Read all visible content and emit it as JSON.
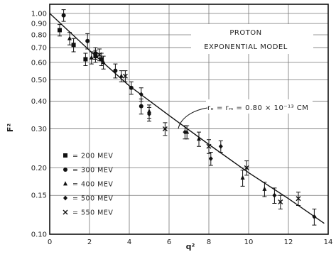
{
  "chart_data": {
    "type": "scatter",
    "title_lines": [
      "PROTON",
      "EXPONENTIAL MODEL"
    ],
    "xlabel": "q²",
    "ylabel": "F²",
    "xlim": [
      0,
      14
    ],
    "ylim": [
      0.1,
      1.1
    ],
    "y_scale": "log",
    "grid": true,
    "x_ticks": [
      0,
      2,
      4,
      6,
      8,
      10,
      12,
      14
    ],
    "x_tick_labels": [
      "0",
      "2",
      "4",
      "6",
      "8",
      "10",
      "12",
      "14"
    ],
    "y_ticks": [
      1.0,
      0.9,
      0.8,
      0.7,
      0.6,
      0.5,
      0.4,
      0.3,
      0.2,
      0.15,
      0.1
    ],
    "y_tick_labels": [
      "1.00",
      "0.90",
      "0.80",
      "0.70",
      "0.60",
      "0.50",
      "0.40",
      "0.30",
      "0.20",
      "0.15",
      "0.10"
    ],
    "annotation": "rₑ = rₘ = 0.80 × 10⁻¹³ CM",
    "annotation_target": {
      "x": 5.6,
      "y": 0.36
    },
    "legend_position": "lower-left",
    "legend": [
      {
        "marker": "square",
        "label": "= 200 MEV"
      },
      {
        "marker": "circle",
        "label": "= 300 MEV"
      },
      {
        "marker": "triangle",
        "label": "= 400 MEV"
      },
      {
        "marker": "diamond",
        "label": "= 500 MEV"
      },
      {
        "marker": "cross",
        "label": "= 550 MEV"
      }
    ],
    "fit_curve": {
      "model": "exponential",
      "x": [
        0,
        2,
        4,
        6,
        8,
        10,
        12,
        13.8
      ],
      "y": [
        1.0,
        0.68,
        0.47,
        0.345,
        0.255,
        0.19,
        0.145,
        0.112
      ]
    },
    "series": [
      {
        "name": "200 MEV",
        "marker": "square",
        "points": [
          {
            "x": 0.5,
            "y": 0.84,
            "err": 0.05
          },
          {
            "x": 1.2,
            "y": 0.72,
            "err": 0.05
          },
          {
            "x": 1.8,
            "y": 0.62,
            "err": 0.04
          },
          {
            "x": 2.3,
            "y": 0.64,
            "err": 0.04
          },
          {
            "x": 2.6,
            "y": 0.62,
            "err": 0.04
          }
        ]
      },
      {
        "name": "300 MEV",
        "marker": "circle",
        "points": [
          {
            "x": 0.7,
            "y": 0.98,
            "err": 0.06
          },
          {
            "x": 1.9,
            "y": 0.75,
            "err": 0.06
          },
          {
            "x": 2.3,
            "y": 0.66,
            "err": 0.04
          },
          {
            "x": 3.3,
            "y": 0.55,
            "err": 0.04
          },
          {
            "x": 4.1,
            "y": 0.46,
            "err": 0.03
          },
          {
            "x": 4.6,
            "y": 0.38,
            "err": 0.03
          }
        ]
      },
      {
        "name": "400 MEV",
        "marker": "triangle",
        "points": [
          {
            "x": 1.0,
            "y": 0.77,
            "err": 0.05
          },
          {
            "x": 2.1,
            "y": 0.63,
            "err": 0.04
          },
          {
            "x": 2.7,
            "y": 0.6,
            "err": 0.04
          },
          {
            "x": 3.6,
            "y": 0.52,
            "err": 0.03
          },
          {
            "x": 5.0,
            "y": 0.36,
            "err": 0.025
          },
          {
            "x": 6.9,
            "y": 0.29,
            "err": 0.02
          },
          {
            "x": 7.5,
            "y": 0.27,
            "err": 0.02
          },
          {
            "x": 9.7,
            "y": 0.18,
            "err": 0.015
          },
          {
            "x": 10.8,
            "y": 0.16,
            "err": 0.012
          }
        ]
      },
      {
        "name": "500 MEV",
        "marker": "diamond",
        "points": [
          {
            "x": 4.6,
            "y": 0.43,
            "err": 0.03
          },
          {
            "x": 5.0,
            "y": 0.35,
            "err": 0.025
          },
          {
            "x": 6.8,
            "y": 0.29,
            "err": 0.02
          },
          {
            "x": 8.1,
            "y": 0.22,
            "err": 0.015
          },
          {
            "x": 8.6,
            "y": 0.25,
            "err": 0.015
          },
          {
            "x": 11.3,
            "y": 0.15,
            "err": 0.012
          },
          {
            "x": 13.3,
            "y": 0.12,
            "err": 0.01
          }
        ]
      },
      {
        "name": "550 MEV",
        "marker": "cross",
        "points": [
          {
            "x": 2.5,
            "y": 0.65,
            "err": 0.04
          },
          {
            "x": 3.8,
            "y": 0.52,
            "err": 0.03
          },
          {
            "x": 5.8,
            "y": 0.3,
            "err": 0.02
          },
          {
            "x": 8.0,
            "y": 0.25,
            "err": 0.018
          },
          {
            "x": 9.9,
            "y": 0.2,
            "err": 0.015
          },
          {
            "x": 11.6,
            "y": 0.14,
            "err": 0.01
          },
          {
            "x": 12.5,
            "y": 0.145,
            "err": 0.01
          }
        ]
      }
    ]
  }
}
